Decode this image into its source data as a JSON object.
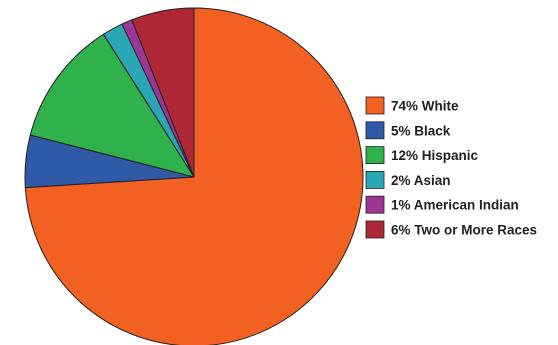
{
  "chart_data": {
    "type": "pie",
    "title": "",
    "start_angle_deg": 0,
    "direction": "clockwise",
    "legend_position": "right",
    "slices": [
      {
        "label": "74% White",
        "value": 74,
        "color": "#f26122"
      },
      {
        "label": "5% Black",
        "value": 5,
        "color": "#2e5aa8"
      },
      {
        "label": "12% Hispanic",
        "value": 12,
        "color": "#2fb24c"
      },
      {
        "label": "2% Asian",
        "value": 2,
        "color": "#2aa6b6"
      },
      {
        "label": "1% American Indian",
        "value": 1,
        "color": "#9c3696"
      },
      {
        "label": "6% Two or More Races",
        "value": 6,
        "color": "#ae2736"
      }
    ]
  }
}
